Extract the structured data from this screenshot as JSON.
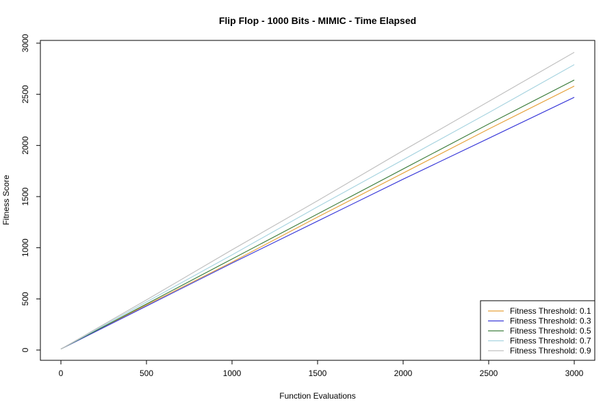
{
  "chart_data": {
    "type": "line",
    "title": "Flip Flop - 1000 Bits - MIMIC - Time Elapsed",
    "xlabel": "Function Evaluations",
    "ylabel": "Fitness Score",
    "xlim": [
      0,
      3000
    ],
    "ylim": [
      0,
      3000
    ],
    "xticks": [
      0,
      500,
      1000,
      1500,
      2000,
      2500,
      3000
    ],
    "yticks": [
      0,
      500,
      1000,
      1500,
      2000,
      2500,
      3000
    ],
    "grid": false,
    "legend_position": "bottom-right",
    "x": [
      0,
      500,
      1000,
      1500,
      2000,
      2500,
      3000
    ],
    "series": [
      {
        "name": "Fitness Threshold: 0.1",
        "color": "#e6a23c",
        "values": [
          10,
          440,
          860,
          1300,
          1730,
          2160,
          2580
        ]
      },
      {
        "name": "Fitness Threshold: 0.3",
        "color": "#3b3bd9",
        "values": [
          10,
          430,
          850,
          1260,
          1670,
          2070,
          2470
        ]
      },
      {
        "name": "Fitness Threshold: 0.5",
        "color": "#3f7f3f",
        "values": [
          10,
          450,
          890,
          1330,
          1770,
          2210,
          2640
        ]
      },
      {
        "name": "Fitness Threshold: 0.7",
        "color": "#a8d4e0",
        "values": [
          10,
          470,
          930,
          1400,
          1860,
          2320,
          2790
        ]
      },
      {
        "name": "Fitness Threshold: 0.9",
        "color": "#c0c0c0",
        "values": [
          10,
          490,
          980,
          1460,
          1950,
          2430,
          2910
        ]
      }
    ]
  }
}
